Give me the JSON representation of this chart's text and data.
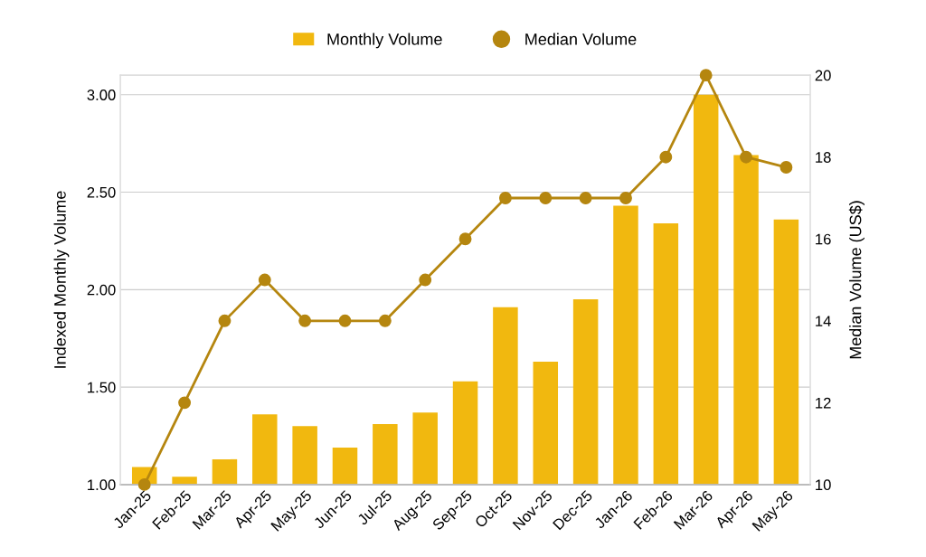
{
  "chart_data": {
    "type": "bar",
    "ylabel": "Indexed Monthly Volume",
    "y2label": "Median Volume (US$)",
    "categories": [
      "Jan-25",
      "Feb-25",
      "Mar-25",
      "Apr-25",
      "May-25",
      "Jun-25",
      "Jul-25",
      "Aug-25",
      "Sep-25",
      "Oct-25",
      "Nov-25",
      "Dec-25",
      "Jan-26",
      "Feb-26",
      "Mar-26",
      "Apr-26",
      "May-26"
    ],
    "series": [
      {
        "name": "Monthly Volume",
        "color": "#f1b80f",
        "values": [
          1.09,
          1.04,
          1.13,
          1.36,
          1.3,
          1.19,
          1.31,
          1.37,
          1.53,
          1.91,
          1.63,
          1.95,
          2.43,
          2.34,
          3.0,
          2.69,
          2.36
        ]
      },
      {
        "name": "Median Volume",
        "type": "line",
        "axis": "y2",
        "color": "#b5860f",
        "values": [
          10,
          12,
          14,
          15,
          14,
          14,
          14,
          15,
          16,
          17,
          17,
          17,
          17,
          18,
          20,
          18,
          17.75
        ]
      }
    ],
    "ylim": [
      1,
      3.1
    ],
    "yticks": [
      {
        "value": 1,
        "label": "1.00"
      },
      {
        "value": 1.5,
        "label": "1.50"
      },
      {
        "value": 2,
        "label": "2.00"
      },
      {
        "value": 2.5,
        "label": "2.50"
      },
      {
        "value": 3,
        "label": "3.00"
      }
    ],
    "y2lim": [
      10,
      20
    ],
    "y2ticks": [
      10,
      12,
      14,
      16,
      18,
      20
    ],
    "grid": "y",
    "legend": "top",
    "marker": "circle",
    "line_style": "solid"
  }
}
